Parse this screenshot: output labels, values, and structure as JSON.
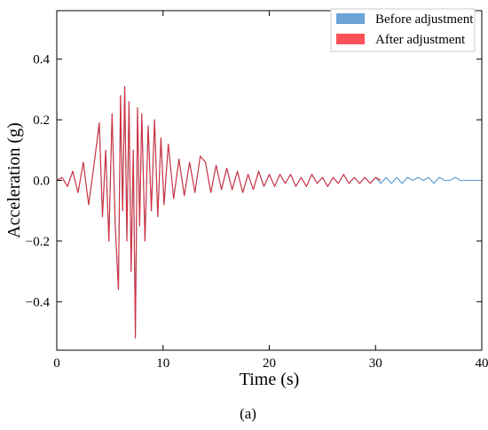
{
  "chart_data": {
    "type": "line",
    "xlabel": "Time (s)",
    "ylabel": "Acceleration (g)",
    "xlim": [
      0,
      40
    ],
    "ylim": [
      -0.56,
      0.56
    ],
    "xticks": [
      0,
      10,
      20,
      30,
      40
    ],
    "yticks": [
      -0.4,
      -0.2,
      0.0,
      0.2,
      0.4
    ],
    "xtick_labels": [
      "0",
      "10",
      "20",
      "30",
      "40"
    ],
    "ytick_labels": [
      "−0.4",
      "−0.2",
      "0.0",
      "0.2",
      "0.4"
    ],
    "grid": false,
    "legend_position": "top-right",
    "caption": "(a)",
    "series": [
      {
        "name": "Before adjustment",
        "color": "#5b9bd0",
        "x": [
          0,
          0.5,
          1,
          1.5,
          2,
          2.5,
          3,
          3.5,
          4,
          4.3,
          4.6,
          4.9,
          5.2,
          5.5,
          5.8,
          6.0,
          6.2,
          6.4,
          6.6,
          6.8,
          7.0,
          7.2,
          7.4,
          7.6,
          7.8,
          8.0,
          8.3,
          8.6,
          8.9,
          9.2,
          9.5,
          9.8,
          10.1,
          10.5,
          11,
          11.5,
          12,
          12.5,
          13,
          13.5,
          14,
          14.5,
          15,
          15.5,
          16,
          16.5,
          17,
          17.5,
          18,
          18.5,
          19,
          19.5,
          20,
          20.5,
          21,
          21.5,
          22,
          22.5,
          23,
          23.5,
          24,
          24.5,
          25,
          25.5,
          26,
          26.5,
          27,
          27.5,
          28,
          28.5,
          29,
          29.5,
          30,
          30.5,
          31,
          31.5,
          32,
          32.5,
          33,
          33.5,
          34,
          34.5,
          35,
          35.5,
          36,
          36.5,
          37,
          37.5,
          38,
          38.5,
          39,
          39.5,
          40
        ],
        "y": [
          0,
          0.01,
          -0.02,
          0.03,
          -0.04,
          0.06,
          -0.08,
          0.05,
          0.19,
          -0.12,
          0.1,
          -0.2,
          0.22,
          -0.15,
          -0.36,
          0.28,
          -0.1,
          0.31,
          -0.2,
          0.26,
          -0.3,
          0.1,
          -0.52,
          0.24,
          -0.15,
          0.22,
          -0.2,
          0.18,
          -0.1,
          0.2,
          -0.12,
          0.14,
          -0.08,
          0.12,
          -0.06,
          0.07,
          -0.05,
          0.06,
          -0.04,
          0.08,
          0.06,
          -0.04,
          0.05,
          -0.03,
          0.04,
          -0.03,
          0.03,
          -0.04,
          0.02,
          -0.03,
          0.03,
          -0.02,
          0.02,
          -0.02,
          0.02,
          -0.01,
          0.02,
          -0.02,
          0.01,
          -0.02,
          0.02,
          -0.01,
          0.01,
          -0.02,
          0.01,
          -0.01,
          0.02,
          -0.01,
          0.01,
          -0.01,
          0.01,
          -0.01,
          0.01,
          -0.01,
          0.01,
          -0.01,
          0.01,
          -0.01,
          0.01,
          0.0,
          0.01,
          0.0,
          0.01,
          -0.01,
          0.01,
          0.0,
          0.0,
          0.01,
          0.0,
          0.0,
          0.0,
          0.0,
          0.0
        ]
      },
      {
        "name": "After adjustment",
        "color": "#d42f3c",
        "x": [
          0,
          0.5,
          1,
          1.5,
          2,
          2.5,
          3,
          3.5,
          4,
          4.3,
          4.6,
          4.9,
          5.2,
          5.5,
          5.8,
          6.0,
          6.2,
          6.4,
          6.6,
          6.8,
          7.0,
          7.2,
          7.4,
          7.6,
          7.8,
          8.0,
          8.3,
          8.6,
          8.9,
          9.2,
          9.5,
          9.8,
          10.1,
          10.5,
          11,
          11.5,
          12,
          12.5,
          13,
          13.5,
          14,
          14.5,
          15,
          15.5,
          16,
          16.5,
          17,
          17.5,
          18,
          18.5,
          19,
          19.5,
          20,
          20.5,
          21,
          21.5,
          22,
          22.5,
          23,
          23.5,
          24,
          24.5,
          25,
          25.5,
          26,
          26.5,
          27,
          27.5,
          28,
          28.5,
          29,
          29.5,
          30,
          30.5
        ],
        "y": [
          0,
          0.01,
          -0.02,
          0.03,
          -0.04,
          0.06,
          -0.08,
          0.05,
          0.19,
          -0.12,
          0.1,
          -0.2,
          0.22,
          -0.15,
          -0.36,
          0.28,
          -0.1,
          0.31,
          -0.2,
          0.26,
          -0.3,
          0.1,
          -0.52,
          0.24,
          -0.15,
          0.22,
          -0.2,
          0.18,
          -0.1,
          0.2,
          -0.12,
          0.14,
          -0.08,
          0.12,
          -0.06,
          0.07,
          -0.05,
          0.06,
          -0.04,
          0.08,
          0.06,
          -0.04,
          0.05,
          -0.03,
          0.04,
          -0.03,
          0.03,
          -0.04,
          0.02,
          -0.03,
          0.03,
          -0.02,
          0.02,
          -0.02,
          0.02,
          -0.01,
          0.02,
          -0.02,
          0.01,
          -0.02,
          0.02,
          -0.01,
          0.01,
          -0.02,
          0.01,
          -0.01,
          0.02,
          -0.01,
          0.01,
          -0.01,
          0.01,
          -0.01,
          0.01,
          0.0
        ]
      }
    ]
  }
}
